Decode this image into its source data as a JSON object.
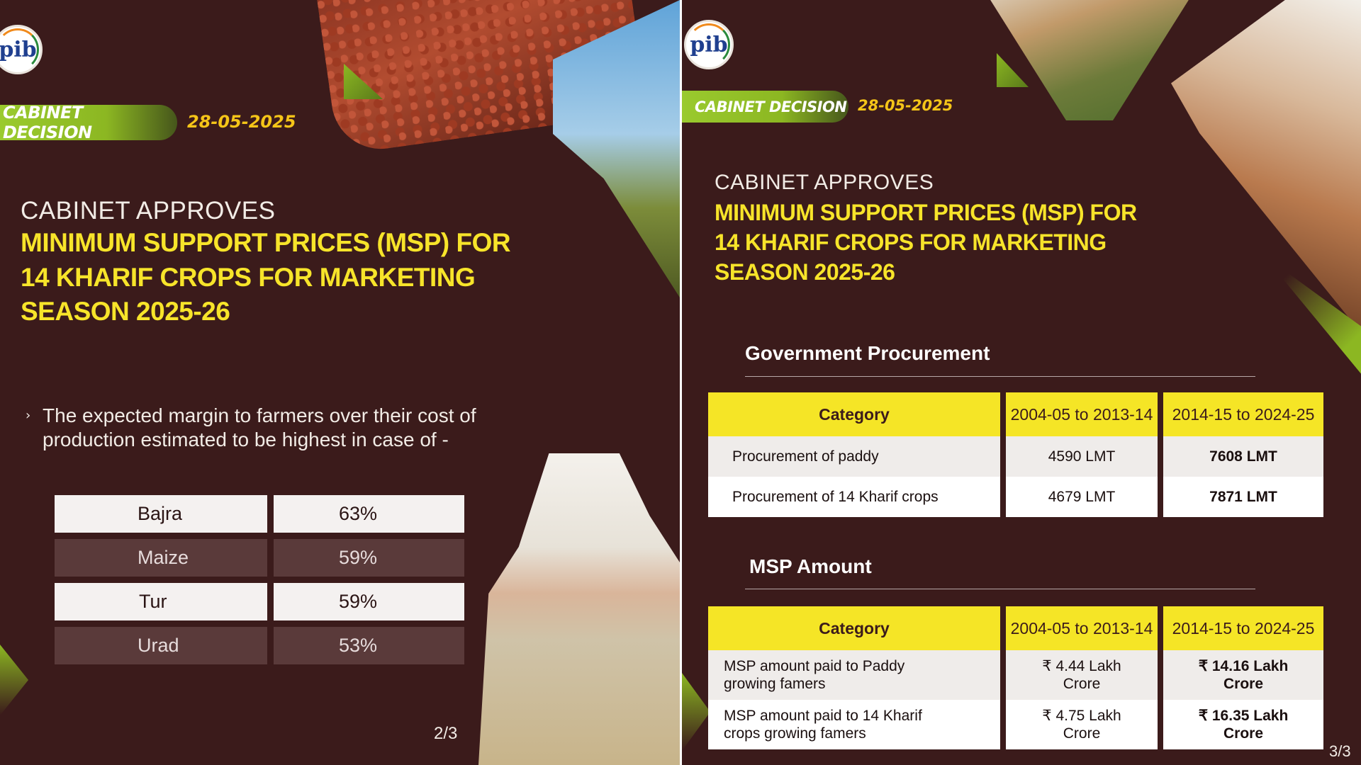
{
  "slide_left": {
    "logo_text": "pib",
    "badge": "CABINET DECISION",
    "date": "28-05-2025",
    "title_small": "CABINET APPROVES",
    "title_lines": [
      "MINIMUM SUPPORT PRICES (MSP) FOR",
      "14 KHARIF CROPS FOR MARKETING",
      "SEASON 2025-26"
    ],
    "bullet": "The expected margin to farmers over their cost of production estimated to be highest in case of -",
    "margins": [
      {
        "crop": "Bajra",
        "percent": "63%"
      },
      {
        "crop": "Maize",
        "percent": "59%"
      },
      {
        "crop": "Tur",
        "percent": "59%"
      },
      {
        "crop": "Urad",
        "percent": "53%"
      }
    ],
    "page": "2/3"
  },
  "slide_right": {
    "logo_text": "pib",
    "badge": "CABINET DECISION",
    "date": "28-05-2025",
    "title_small": "CABINET APPROVES",
    "title_lines": [
      "MINIMUM SUPPORT PRICES (MSP) FOR",
      "14 KHARIF CROPS FOR MARKETING",
      "SEASON 2025-26"
    ],
    "procurement": {
      "title": "Government Procurement",
      "headers": [
        "Category",
        "2004-05 to 2013-14",
        "2014-15 to 2024-25"
      ],
      "rows": [
        [
          "Procurement of paddy",
          "4590 LMT",
          "7608 LMT"
        ],
        [
          "Procurement of 14 Kharif crops",
          "4679 LMT",
          "7871 LMT"
        ]
      ]
    },
    "msp": {
      "title": "MSP Amount",
      "headers": [
        "Category",
        "2004-05 to 2013-14",
        "2014-15 to 2024-25"
      ],
      "rows": [
        [
          "MSP amount paid to Paddy growing famers",
          "₹ 4.44 Lakh Crore",
          "₹ 14.16 Lakh Crore"
        ],
        [
          "MSP amount paid to 14 Kharif crops growing famers",
          "₹ 4.75 Lakh Crore",
          "₹ 16.35 Lakh Crore"
        ]
      ]
    },
    "page": "3/3"
  }
}
